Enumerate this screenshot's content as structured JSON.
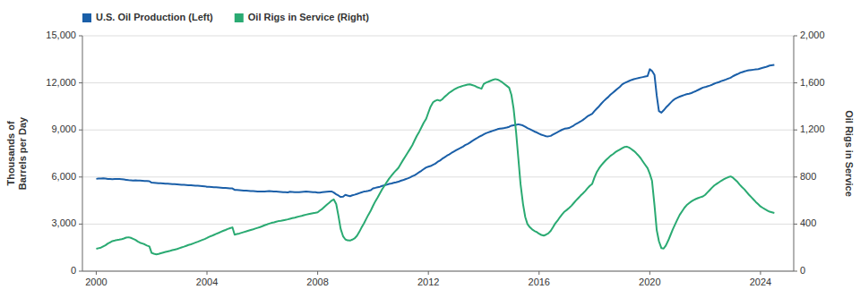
{
  "chart_data": {
    "type": "line",
    "ylabel": "Thousands of\nBarrels per Day",
    "y2label": "Oil Rigs in Service",
    "grid": true,
    "legend": "upper left",
    "xlim": [
      1999.5,
      2025.2
    ],
    "xticks": [
      2000,
      2004,
      2008,
      2012,
      2016,
      2020,
      2024
    ],
    "ylim": [
      0,
      15000
    ],
    "yticks": [
      0,
      {
        "value": 3000,
        "label": "3,000"
      },
      {
        "value": 6000,
        "label": "6,000"
      },
      {
        "value": 9000,
        "label": "9,000"
      },
      {
        "value": 12000,
        "label": "12,000"
      },
      {
        "value": 15000,
        "label": "15,000"
      }
    ],
    "y2lim": [
      0,
      2000
    ],
    "y2ticks": [
      0,
      400,
      800,
      {
        "value": 1200,
        "label": "1,200"
      },
      {
        "value": 1600,
        "label": "1,600"
      },
      {
        "value": 2000,
        "label": "2,000"
      }
    ],
    "x": [
      2000.0,
      2000.08,
      2000.17,
      2000.25,
      2000.33,
      2000.42,
      2000.5,
      2000.58,
      2000.67,
      2000.75,
      2000.83,
      2000.92,
      2001.0,
      2001.08,
      2001.17,
      2001.25,
      2001.33,
      2001.42,
      2001.5,
      2001.58,
      2001.67,
      2001.75,
      2001.83,
      2001.92,
      2002.0,
      2002.08,
      2002.17,
      2002.25,
      2002.33,
      2002.42,
      2002.5,
      2002.58,
      2002.67,
      2002.75,
      2002.83,
      2002.92,
      2003.0,
      2003.08,
      2003.17,
      2003.25,
      2003.33,
      2003.42,
      2003.5,
      2003.58,
      2003.67,
      2003.75,
      2003.83,
      2003.92,
      2004.0,
      2004.08,
      2004.17,
      2004.25,
      2004.33,
      2004.42,
      2004.5,
      2004.58,
      2004.67,
      2004.75,
      2004.83,
      2004.92,
      2005.0,
      2005.08,
      2005.17,
      2005.25,
      2005.33,
      2005.42,
      2005.5,
      2005.58,
      2005.67,
      2005.75,
      2005.83,
      2005.92,
      2006.0,
      2006.08,
      2006.17,
      2006.25,
      2006.33,
      2006.42,
      2006.5,
      2006.58,
      2006.67,
      2006.75,
      2006.83,
      2006.92,
      2007.0,
      2007.08,
      2007.17,
      2007.25,
      2007.33,
      2007.42,
      2007.5,
      2007.58,
      2007.67,
      2007.75,
      2007.83,
      2007.92,
      2008.0,
      2008.08,
      2008.17,
      2008.25,
      2008.33,
      2008.42,
      2008.5,
      2008.58,
      2008.67,
      2008.75,
      2008.83,
      2008.92,
      2009.0,
      2009.08,
      2009.17,
      2009.25,
      2009.33,
      2009.42,
      2009.5,
      2009.58,
      2009.67,
      2009.75,
      2009.83,
      2009.92,
      2010.0,
      2010.08,
      2010.17,
      2010.25,
      2010.33,
      2010.42,
      2010.5,
      2010.58,
      2010.67,
      2010.75,
      2010.83,
      2010.92,
      2011.0,
      2011.08,
      2011.17,
      2011.25,
      2011.33,
      2011.42,
      2011.5,
      2011.58,
      2011.67,
      2011.75,
      2011.83,
      2011.92,
      2012.0,
      2012.08,
      2012.17,
      2012.25,
      2012.33,
      2012.42,
      2012.5,
      2012.58,
      2012.67,
      2012.75,
      2012.83,
      2012.92,
      2013.0,
      2013.08,
      2013.17,
      2013.25,
      2013.33,
      2013.42,
      2013.5,
      2013.58,
      2013.67,
      2013.75,
      2013.83,
      2013.92,
      2014.0,
      2014.08,
      2014.17,
      2014.25,
      2014.33,
      2014.42,
      2014.5,
      2014.58,
      2014.67,
      2014.75,
      2014.83,
      2014.92,
      2015.0,
      2015.08,
      2015.17,
      2015.25,
      2015.33,
      2015.42,
      2015.5,
      2015.58,
      2015.67,
      2015.75,
      2015.83,
      2015.92,
      2016.0,
      2016.08,
      2016.17,
      2016.25,
      2016.33,
      2016.42,
      2016.5,
      2016.58,
      2016.67,
      2016.75,
      2016.83,
      2016.92,
      2017.0,
      2017.08,
      2017.17,
      2017.25,
      2017.33,
      2017.42,
      2017.5,
      2017.58,
      2017.67,
      2017.75,
      2017.83,
      2017.92,
      2018.0,
      2018.08,
      2018.17,
      2018.25,
      2018.33,
      2018.42,
      2018.5,
      2018.58,
      2018.67,
      2018.75,
      2018.83,
      2018.92,
      2019.0,
      2019.08,
      2019.17,
      2019.25,
      2019.33,
      2019.42,
      2019.5,
      2019.58,
      2019.67,
      2019.75,
      2019.83,
      2019.92,
      2020.0,
      2020.08,
      2020.17,
      2020.25,
      2020.33,
      2020.42,
      2020.5,
      2020.58,
      2020.67,
      2020.75,
      2020.83,
      2020.92,
      2021.0,
      2021.08,
      2021.17,
      2021.25,
      2021.33,
      2021.42,
      2021.5,
      2021.58,
      2021.67,
      2021.75,
      2021.83,
      2021.92,
      2022.0,
      2022.08,
      2022.17,
      2022.25,
      2022.33,
      2022.42,
      2022.5,
      2022.58,
      2022.67,
      2022.75,
      2022.83,
      2022.92,
      2023.0,
      2023.08,
      2023.17,
      2023.25,
      2023.33,
      2023.42,
      2023.5,
      2023.58,
      2023.67,
      2023.75,
      2023.83,
      2023.92,
      2024.0,
      2024.08,
      2024.17,
      2024.25,
      2024.33,
      2024.5
    ],
    "series": [
      {
        "name": "U.S. Oil Production (Left)",
        "color": "#1a5fa8",
        "values": [
          5882,
          5900,
          5910,
          5920,
          5900,
          5880,
          5870,
          5860,
          5870,
          5880,
          5870,
          5860,
          5840,
          5820,
          5800,
          5790,
          5780,
          5790,
          5780,
          5770,
          5760,
          5750,
          5740,
          5730,
          5640,
          5630,
          5620,
          5610,
          5600,
          5590,
          5580,
          5570,
          5560,
          5550,
          5540,
          5530,
          5520,
          5510,
          5500,
          5490,
          5480,
          5470,
          5460,
          5450,
          5440,
          5430,
          5420,
          5410,
          5380,
          5370,
          5360,
          5350,
          5340,
          5330,
          5320,
          5310,
          5300,
          5290,
          5280,
          5270,
          5180,
          5170,
          5160,
          5150,
          5140,
          5130,
          5120,
          5110,
          5100,
          5090,
          5080,
          5070,
          5070,
          5080,
          5090,
          5100,
          5090,
          5080,
          5070,
          5060,
          5050,
          5040,
          5030,
          5020,
          5060,
          5050,
          5040,
          5040,
          5030,
          5050,
          5060,
          5070,
          5060,
          5050,
          5040,
          5030,
          5000,
          5010,
          5030,
          5050,
          5060,
          5070,
          5080,
          5010,
          4900,
          4820,
          4730,
          4750,
          4860,
          4820,
          4780,
          4830,
          4870,
          4920,
          4970,
          5020,
          5070,
          5090,
          5120,
          5160,
          5280,
          5310,
          5350,
          5380,
          5430,
          5470,
          5510,
          5560,
          5590,
          5630,
          5660,
          5700,
          5760,
          5800,
          5860,
          5910,
          5970,
          6050,
          6110,
          6200,
          6310,
          6400,
          6500,
          6610,
          6660,
          6700,
          6780,
          6850,
          6960,
          7050,
          7160,
          7250,
          7360,
          7440,
          7530,
          7620,
          7700,
          7780,
          7860,
          7940,
          8030,
          8110,
          8190,
          8290,
          8390,
          8470,
          8560,
          8640,
          8720,
          8790,
          8850,
          8900,
          8950,
          9000,
          9050,
          9080,
          9100,
          9120,
          9150,
          9200,
          9270,
          9300,
          9330,
          9360,
          9330,
          9280,
          9200,
          9120,
          9050,
          8980,
          8900,
          8840,
          8760,
          8700,
          8650,
          8600,
          8590,
          8620,
          8700,
          8780,
          8860,
          8940,
          9010,
          9080,
          9100,
          9120,
          9200,
          9280,
          9380,
          9460,
          9540,
          9630,
          9750,
          9870,
          9950,
          10030,
          10200,
          10350,
          10510,
          10680,
          10830,
          10980,
          11100,
          11250,
          11380,
          11500,
          11620,
          11750,
          11900,
          11980,
          12060,
          12120,
          12180,
          12230,
          12270,
          12300,
          12340,
          12370,
          12400,
          12430,
          12870,
          12760,
          12500,
          11200,
          10200,
          10100,
          10250,
          10420,
          10580,
          10730,
          10870,
          10990,
          11060,
          11120,
          11180,
          11230,
          11280,
          11310,
          11350,
          11410,
          11480,
          11550,
          11620,
          11700,
          11730,
          11780,
          11830,
          11880,
          11950,
          12010,
          12050,
          12110,
          12160,
          12210,
          12270,
          12330,
          12420,
          12490,
          12560,
          12630,
          12680,
          12730,
          12770,
          12800,
          12820,
          12840,
          12860,
          12880,
          12920,
          12960,
          13000,
          13050,
          13100,
          13150
        ]
      },
      {
        "name": "Oil Rigs in Service (Right)",
        "color": "#2aaa72",
        "axis": "y2",
        "values": [
          190,
          195,
          200,
          210,
          220,
          235,
          245,
          255,
          260,
          265,
          268,
          272,
          278,
          285,
          288,
          283,
          275,
          265,
          252,
          242,
          235,
          228,
          218,
          210,
          155,
          148,
          143,
          147,
          152,
          158,
          163,
          168,
          173,
          178,
          183,
          188,
          195,
          202,
          208,
          215,
          222,
          228,
          235,
          242,
          250,
          258,
          265,
          273,
          282,
          292,
          300,
          308,
          316,
          325,
          334,
          342,
          350,
          358,
          365,
          372,
          310,
          315,
          320,
          326,
          332,
          338,
          344,
          350,
          356,
          362,
          368,
          375,
          382,
          390,
          397,
          404,
          410,
          415,
          420,
          425,
          428,
          432,
          436,
          440,
          445,
          450,
          455,
          460,
          465,
          470,
          475,
          480,
          484,
          488,
          492,
          496,
          500,
          515,
          530,
          548,
          565,
          582,
          598,
          610,
          570,
          470,
          360,
          295,
          270,
          262,
          260,
          268,
          278,
          300,
          332,
          368,
          405,
          442,
          478,
          515,
          555,
          592,
          628,
          662,
          696,
          728,
          758,
          786,
          812,
          835,
          856,
          878,
          910,
          942,
          975,
          1005,
          1035,
          1070,
          1110,
          1148,
          1185,
          1222,
          1260,
          1295,
          1348,
          1398,
          1435,
          1448,
          1455,
          1448,
          1460,
          1480,
          1498,
          1515,
          1528,
          1542,
          1552,
          1562,
          1568,
          1575,
          1580,
          1585,
          1588,
          1582,
          1575,
          1565,
          1558,
          1550,
          1590,
          1602,
          1610,
          1618,
          1625,
          1632,
          1628,
          1618,
          1605,
          1590,
          1575,
          1558,
          1498,
          1380,
          1180,
          960,
          740,
          570,
          460,
          400,
          372,
          355,
          342,
          332,
          318,
          308,
          302,
          310,
          320,
          342,
          372,
          404,
          430,
          458,
          482,
          506,
          520,
          536,
          556,
          578,
          600,
          622,
          642,
          660,
          682,
          704,
          724,
          742,
          795,
          840,
          875,
          900,
          922,
          945,
          962,
          980,
          994,
          1010,
          1022,
          1034,
          1045,
          1055,
          1058,
          1050,
          1038,
          1022,
          1005,
          985,
          960,
          932,
          905,
          875,
          828,
          768,
          560,
          350,
          255,
          195,
          192,
          218,
          262,
          308,
          355,
          400,
          440,
          478,
          510,
          538,
          560,
          578,
          592,
          604,
          614,
          622,
          628,
          635,
          648,
          668,
          690,
          710,
          728,
          742,
          755,
          768,
          780,
          790,
          798,
          805,
          795,
          778,
          758,
          735,
          715,
          695,
          672,
          650,
          628,
          608,
          588,
          568,
          550,
          538,
          525,
          515,
          505,
          495
        ]
      }
    ]
  }
}
